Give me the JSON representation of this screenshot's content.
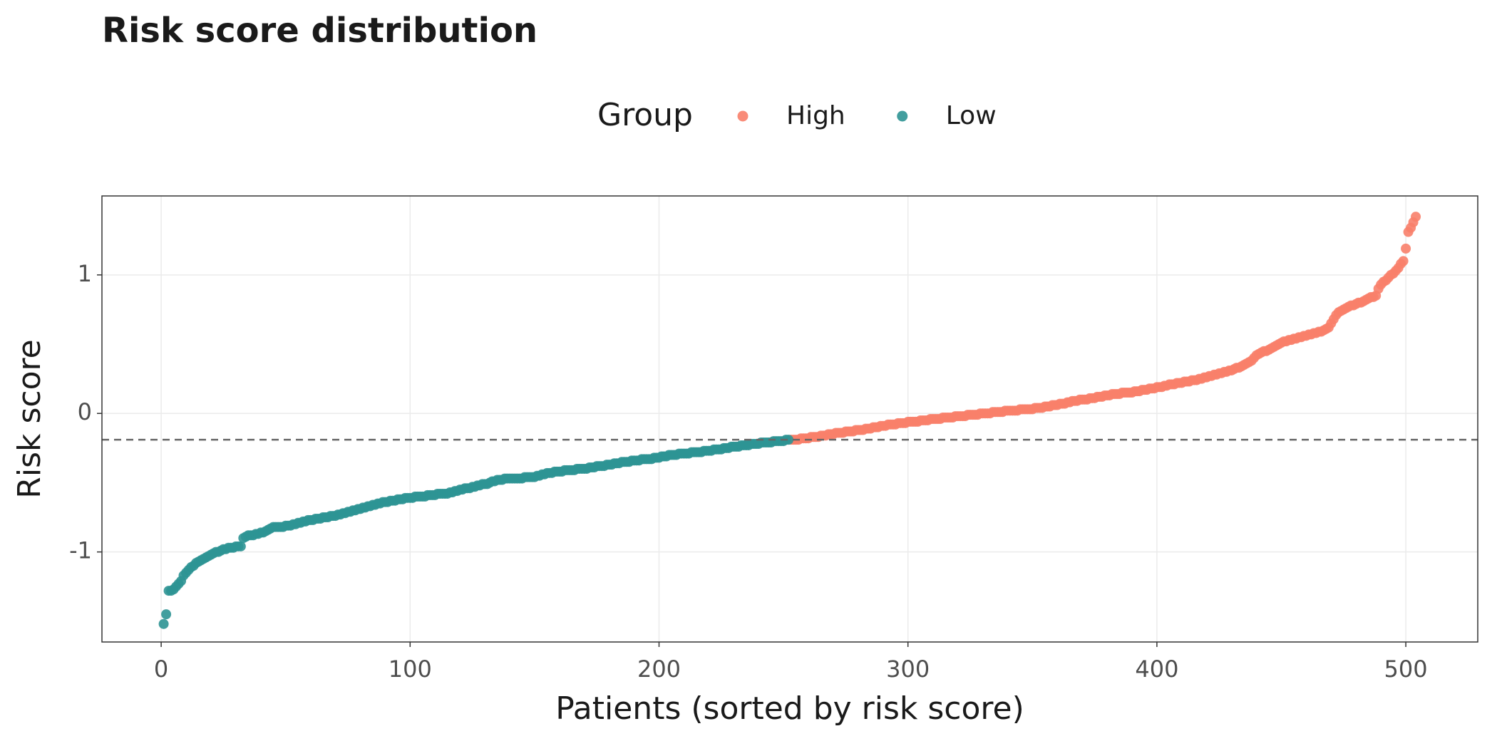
{
  "chart_data": {
    "type": "scatter",
    "title": "Risk score distribution",
    "x_label": "Patients (sorted by risk score)",
    "y_label": "Risk score",
    "legend_title": "Group",
    "legend": "top",
    "grid": true,
    "threshold": -0.19,
    "xlim": [
      -23.8,
      528.9
    ],
    "xticks": [
      0,
      100,
      200,
      300,
      400,
      500
    ],
    "ylim": [
      -1.65,
      1.57
    ],
    "yticks": [
      -1,
      0,
      1
    ],
    "series": [
      {
        "name": "High",
        "color": "#f8806a",
        "x": [
          253,
          254,
          255,
          256,
          257,
          258,
          259,
          260,
          261,
          262,
          263,
          264,
          265,
          266,
          267,
          268,
          269,
          270,
          271,
          272,
          273,
          274,
          275,
          276,
          277,
          278,
          279,
          280,
          281,
          282,
          283,
          284,
          285,
          286,
          287,
          288,
          289,
          290,
          291,
          292,
          293,
          294,
          295,
          296,
          297,
          298,
          299,
          300,
          301,
          302,
          303,
          304,
          305,
          306,
          307,
          308,
          309,
          310,
          311,
          312,
          313,
          314,
          315,
          316,
          317,
          318,
          319,
          320,
          321,
          322,
          323,
          324,
          325,
          326,
          327,
          328,
          329,
          330,
          331,
          332,
          333,
          334,
          335,
          336,
          337,
          338,
          339,
          340,
          341,
          342,
          343,
          344,
          345,
          346,
          347,
          348,
          349,
          350,
          351,
          352,
          353,
          354,
          355,
          356,
          357,
          358,
          359,
          360,
          361,
          362,
          363,
          364,
          365,
          366,
          367,
          368,
          369,
          370,
          371,
          372,
          373,
          374,
          375,
          376,
          377,
          378,
          379,
          380,
          381,
          382,
          383,
          384,
          385,
          386,
          387,
          388,
          389,
          390,
          391,
          392,
          393,
          394,
          395,
          396,
          397,
          398,
          399,
          400,
          401,
          402,
          403,
          404,
          405,
          406,
          407,
          408,
          409,
          410,
          411,
          412,
          413,
          414,
          415,
          416,
          417,
          418,
          419,
          420,
          421,
          422,
          423,
          424,
          425,
          426,
          427,
          428,
          429,
          430,
          431,
          432,
          433,
          434,
          435,
          436,
          437,
          438,
          439,
          440,
          441,
          442,
          443,
          444,
          445,
          446,
          447,
          448,
          449,
          450,
          451,
          452,
          453,
          454,
          455,
          456,
          457,
          458,
          459,
          460,
          461,
          462,
          463,
          464,
          465,
          466,
          467,
          468,
          469,
          470,
          471,
          472,
          473,
          474,
          475,
          476,
          477,
          478,
          479,
          480,
          481,
          482,
          483,
          484,
          485,
          486,
          487,
          488,
          489,
          490,
          491,
          492,
          493,
          494,
          495,
          496,
          497,
          498,
          499,
          500,
          501,
          502,
          503,
          504
        ],
        "values": [
          -0.19,
          -0.19,
          -0.19,
          -0.19,
          -0.18,
          -0.18,
          -0.18,
          -0.18,
          -0.17,
          -0.17,
          -0.17,
          -0.17,
          -0.16,
          -0.16,
          -0.16,
          -0.15,
          -0.15,
          -0.15,
          -0.14,
          -0.14,
          -0.14,
          -0.14,
          -0.13,
          -0.13,
          -0.13,
          -0.13,
          -0.12,
          -0.12,
          -0.12,
          -0.12,
          -0.11,
          -0.11,
          -0.11,
          -0.1,
          -0.1,
          -0.1,
          -0.09,
          -0.09,
          -0.09,
          -0.08,
          -0.08,
          -0.08,
          -0.08,
          -0.07,
          -0.07,
          -0.07,
          -0.07,
          -0.06,
          -0.06,
          -0.06,
          -0.06,
          -0.06,
          -0.05,
          -0.05,
          -0.05,
          -0.05,
          -0.04,
          -0.04,
          -0.04,
          -0.04,
          -0.04,
          -0.03,
          -0.03,
          -0.03,
          -0.03,
          -0.03,
          -0.02,
          -0.02,
          -0.02,
          -0.02,
          -0.02,
          -0.01,
          -0.01,
          -0.01,
          -0.01,
          -0.01,
          0.0,
          0.0,
          0.0,
          0.0,
          0.0,
          0.01,
          0.01,
          0.01,
          0.01,
          0.01,
          0.02,
          0.02,
          0.02,
          0.02,
          0.02,
          0.02,
          0.03,
          0.03,
          0.03,
          0.03,
          0.03,
          0.03,
          0.04,
          0.04,
          0.04,
          0.04,
          0.05,
          0.05,
          0.05,
          0.06,
          0.06,
          0.06,
          0.07,
          0.07,
          0.07,
          0.08,
          0.08,
          0.09,
          0.09,
          0.09,
          0.1,
          0.1,
          0.1,
          0.1,
          0.11,
          0.11,
          0.11,
          0.12,
          0.12,
          0.12,
          0.13,
          0.13,
          0.13,
          0.14,
          0.14,
          0.14,
          0.14,
          0.15,
          0.15,
          0.15,
          0.15,
          0.15,
          0.16,
          0.16,
          0.16,
          0.17,
          0.17,
          0.17,
          0.18,
          0.18,
          0.18,
          0.19,
          0.19,
          0.19,
          0.2,
          0.2,
          0.21,
          0.21,
          0.21,
          0.22,
          0.22,
          0.22,
          0.23,
          0.23,
          0.23,
          0.24,
          0.24,
          0.24,
          0.25,
          0.25,
          0.26,
          0.26,
          0.27,
          0.27,
          0.28,
          0.28,
          0.29,
          0.29,
          0.3,
          0.3,
          0.31,
          0.31,
          0.32,
          0.33,
          0.33,
          0.34,
          0.35,
          0.36,
          0.37,
          0.38,
          0.4,
          0.42,
          0.43,
          0.44,
          0.45,
          0.45,
          0.46,
          0.47,
          0.48,
          0.49,
          0.5,
          0.51,
          0.52,
          0.52,
          0.53,
          0.53,
          0.54,
          0.54,
          0.55,
          0.55,
          0.56,
          0.56,
          0.57,
          0.57,
          0.58,
          0.58,
          0.59,
          0.59,
          0.6,
          0.61,
          0.62,
          0.65,
          0.68,
          0.71,
          0.73,
          0.74,
          0.75,
          0.76,
          0.77,
          0.78,
          0.78,
          0.79,
          0.8,
          0.8,
          0.81,
          0.82,
          0.83,
          0.84,
          0.84,
          0.85,
          0.9,
          0.93,
          0.95,
          0.96,
          0.98,
          1.0,
          1.01,
          1.03,
          1.05,
          1.08,
          1.1,
          1.19,
          1.31,
          1.34,
          1.38,
          1.42
        ]
      },
      {
        "name": "Low",
        "color": "#2e9393",
        "x": [
          1,
          2,
          3,
          4,
          5,
          6,
          7,
          8,
          9,
          10,
          11,
          12,
          13,
          14,
          15,
          16,
          17,
          18,
          19,
          20,
          21,
          22,
          23,
          24,
          25,
          26,
          27,
          28,
          29,
          30,
          31,
          32,
          33,
          34,
          35,
          36,
          37,
          38,
          39,
          40,
          41,
          42,
          43,
          44,
          45,
          46,
          47,
          48,
          49,
          50,
          51,
          52,
          53,
          54,
          55,
          56,
          57,
          58,
          59,
          60,
          61,
          62,
          63,
          64,
          65,
          66,
          67,
          68,
          69,
          70,
          71,
          72,
          73,
          74,
          75,
          76,
          77,
          78,
          79,
          80,
          81,
          82,
          83,
          84,
          85,
          86,
          87,
          88,
          89,
          90,
          91,
          92,
          93,
          94,
          95,
          96,
          97,
          98,
          99,
          100,
          101,
          102,
          103,
          104,
          105,
          106,
          107,
          108,
          109,
          110,
          111,
          112,
          113,
          114,
          115,
          116,
          117,
          118,
          119,
          120,
          121,
          122,
          123,
          124,
          125,
          126,
          127,
          128,
          129,
          130,
          131,
          132,
          133,
          134,
          135,
          136,
          137,
          138,
          139,
          140,
          141,
          142,
          143,
          144,
          145,
          146,
          147,
          148,
          149,
          150,
          151,
          152,
          153,
          154,
          155,
          156,
          157,
          158,
          159,
          160,
          161,
          162,
          163,
          164,
          165,
          166,
          167,
          168,
          169,
          170,
          171,
          172,
          173,
          174,
          175,
          176,
          177,
          178,
          179,
          180,
          181,
          182,
          183,
          184,
          185,
          186,
          187,
          188,
          189,
          190,
          191,
          192,
          193,
          194,
          195,
          196,
          197,
          198,
          199,
          200,
          201,
          202,
          203,
          204,
          205,
          206,
          207,
          208,
          209,
          210,
          211,
          212,
          213,
          214,
          215,
          216,
          217,
          218,
          219,
          220,
          221,
          222,
          223,
          224,
          225,
          226,
          227,
          228,
          229,
          230,
          231,
          232,
          233,
          234,
          235,
          236,
          237,
          238,
          239,
          240,
          241,
          242,
          243,
          244,
          245,
          246,
          247,
          248,
          249,
          250,
          251,
          252
        ],
        "values": [
          -1.52,
          -1.45,
          -1.28,
          -1.28,
          -1.27,
          -1.25,
          -1.23,
          -1.21,
          -1.17,
          -1.15,
          -1.13,
          -1.11,
          -1.1,
          -1.08,
          -1.07,
          -1.06,
          -1.05,
          -1.04,
          -1.03,
          -1.02,
          -1.01,
          -1.0,
          -1.0,
          -0.99,
          -0.98,
          -0.98,
          -0.97,
          -0.97,
          -0.97,
          -0.96,
          -0.96,
          -0.96,
          -0.9,
          -0.89,
          -0.88,
          -0.88,
          -0.88,
          -0.87,
          -0.87,
          -0.86,
          -0.86,
          -0.85,
          -0.84,
          -0.83,
          -0.82,
          -0.82,
          -0.82,
          -0.82,
          -0.82,
          -0.81,
          -0.81,
          -0.81,
          -0.8,
          -0.8,
          -0.79,
          -0.79,
          -0.78,
          -0.78,
          -0.77,
          -0.77,
          -0.77,
          -0.76,
          -0.76,
          -0.76,
          -0.75,
          -0.75,
          -0.75,
          -0.74,
          -0.74,
          -0.74,
          -0.73,
          -0.73,
          -0.72,
          -0.72,
          -0.71,
          -0.71,
          -0.7,
          -0.7,
          -0.69,
          -0.69,
          -0.68,
          -0.68,
          -0.67,
          -0.67,
          -0.66,
          -0.66,
          -0.65,
          -0.65,
          -0.64,
          -0.64,
          -0.64,
          -0.63,
          -0.63,
          -0.63,
          -0.62,
          -0.62,
          -0.62,
          -0.61,
          -0.61,
          -0.61,
          -0.61,
          -0.6,
          -0.6,
          -0.6,
          -0.6,
          -0.6,
          -0.59,
          -0.59,
          -0.59,
          -0.59,
          -0.58,
          -0.58,
          -0.58,
          -0.58,
          -0.58,
          -0.57,
          -0.57,
          -0.56,
          -0.56,
          -0.55,
          -0.55,
          -0.54,
          -0.54,
          -0.54,
          -0.53,
          -0.53,
          -0.52,
          -0.52,
          -0.51,
          -0.51,
          -0.51,
          -0.5,
          -0.49,
          -0.49,
          -0.48,
          -0.48,
          -0.48,
          -0.47,
          -0.47,
          -0.47,
          -0.47,
          -0.47,
          -0.47,
          -0.47,
          -0.47,
          -0.46,
          -0.46,
          -0.46,
          -0.46,
          -0.46,
          -0.45,
          -0.45,
          -0.44,
          -0.44,
          -0.43,
          -0.43,
          -0.43,
          -0.42,
          -0.42,
          -0.42,
          -0.42,
          -0.41,
          -0.41,
          -0.41,
          -0.41,
          -0.41,
          -0.4,
          -0.4,
          -0.4,
          -0.4,
          -0.4,
          -0.39,
          -0.39,
          -0.39,
          -0.38,
          -0.38,
          -0.38,
          -0.38,
          -0.37,
          -0.37,
          -0.37,
          -0.36,
          -0.36,
          -0.36,
          -0.35,
          -0.35,
          -0.35,
          -0.35,
          -0.34,
          -0.34,
          -0.34,
          -0.34,
          -0.33,
          -0.33,
          -0.33,
          -0.33,
          -0.33,
          -0.32,
          -0.32,
          -0.32,
          -0.31,
          -0.31,
          -0.31,
          -0.3,
          -0.3,
          -0.3,
          -0.3,
          -0.29,
          -0.29,
          -0.29,
          -0.29,
          -0.29,
          -0.28,
          -0.28,
          -0.28,
          -0.28,
          -0.28,
          -0.27,
          -0.27,
          -0.27,
          -0.27,
          -0.26,
          -0.26,
          -0.26,
          -0.26,
          -0.25,
          -0.25,
          -0.25,
          -0.24,
          -0.24,
          -0.24,
          -0.24,
          -0.23,
          -0.23,
          -0.23,
          -0.23,
          -0.22,
          -0.22,
          -0.22,
          -0.22,
          -0.21,
          -0.21,
          -0.21,
          -0.21,
          -0.21,
          -0.2,
          -0.2,
          -0.2,
          -0.2,
          -0.2,
          -0.19,
          -0.19
        ]
      }
    ]
  }
}
